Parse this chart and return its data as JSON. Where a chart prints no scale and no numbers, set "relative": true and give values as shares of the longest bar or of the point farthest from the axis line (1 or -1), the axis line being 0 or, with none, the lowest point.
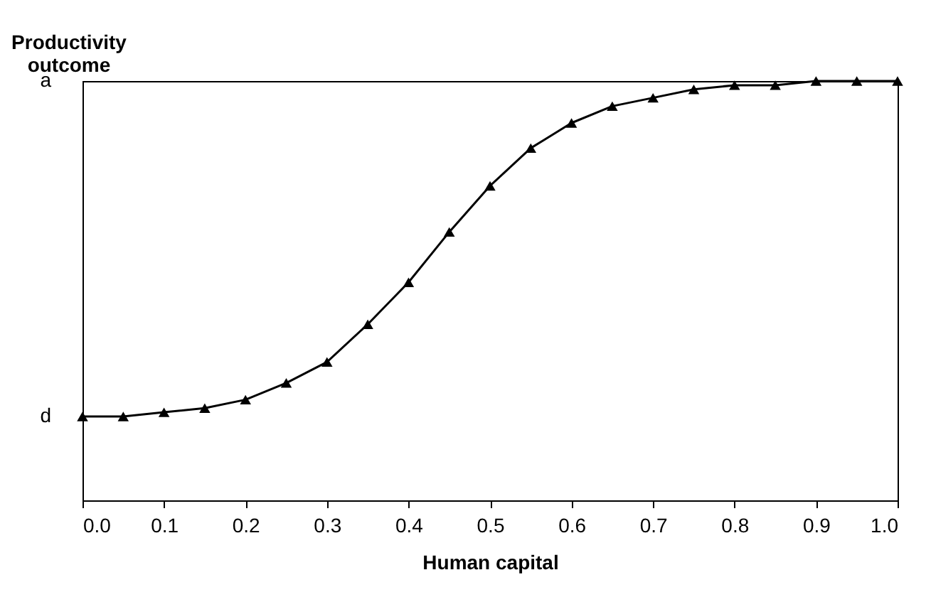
{
  "chart_data": {
    "type": "line",
    "relative": true,
    "xlabel": "Human capital",
    "ylabel": "Productivity outcome",
    "x": [
      0,
      0.05,
      0.1,
      0.15,
      0.2,
      0.25,
      0.3,
      0.35,
      0.4,
      0.45,
      0.5,
      0.55,
      0.6,
      0.65,
      0.7,
      0.75,
      0.8,
      0.85,
      0.9,
      0.95,
      1
    ],
    "series": [
      {
        "color": "#000000",
        "values": [
          0.2,
          0.2,
          0.21,
          0.22,
          0.24,
          0.28,
          0.33,
          0.42,
          0.52,
          0.64,
          0.75,
          0.84,
          0.9,
          0.94,
          0.96,
          0.98,
          0.99,
          0.99,
          1,
          1,
          1
        ]
      }
    ],
    "xlim": [
      0,
      1
    ],
    "xticks": [
      {
        "value": 0,
        "label": "0.0"
      },
      0.1,
      0.2,
      0.3,
      0.4,
      0.5,
      0.6,
      0.7,
      0.8,
      0.9,
      {
        "value": 1,
        "label": "1.0"
      }
    ],
    "annotations": [
      "a",
      "d"
    ],
    "marker": "triangle",
    "line_style": "solid",
    "grid": false
  }
}
